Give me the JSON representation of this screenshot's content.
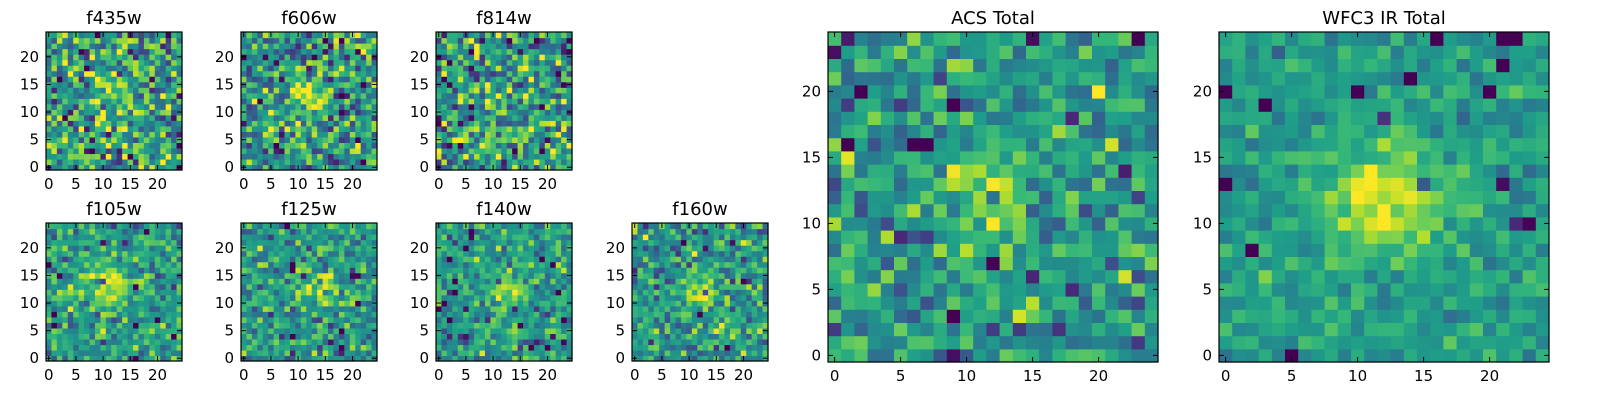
{
  "chart_data": [
    {
      "type": "heatmap",
      "title": "f435w",
      "colormap": "viridis",
      "xlim": [
        0,
        24
      ],
      "ylim": [
        0,
        24
      ],
      "xticks": [
        0,
        5,
        10,
        15,
        20
      ],
      "yticks": [
        0,
        5,
        10,
        15,
        20
      ],
      "peak": [
        12,
        12
      ],
      "peak_amp": 0.1,
      "peak_sigma": 4,
      "noise": 0.23,
      "seed": 11
    },
    {
      "type": "heatmap",
      "title": "f606w",
      "colormap": "viridis",
      "xlim": [
        0,
        24
      ],
      "ylim": [
        0,
        24
      ],
      "xticks": [
        0,
        5,
        10,
        15,
        20
      ],
      "yticks": [
        0,
        5,
        10,
        15,
        20
      ],
      "peak": [
        12,
        13
      ],
      "peak_amp": 0.2,
      "peak_sigma": 2.5,
      "noise": 0.22,
      "seed": 23
    },
    {
      "type": "heatmap",
      "title": "f814w",
      "colormap": "viridis",
      "xlim": [
        0,
        24
      ],
      "ylim": [
        0,
        24
      ],
      "xticks": [
        0,
        5,
        10,
        15,
        20
      ],
      "yticks": [
        0,
        5,
        10,
        15,
        20
      ],
      "peak": [
        12,
        12
      ],
      "peak_amp": 0.12,
      "peak_sigma": 3,
      "noise": 0.24,
      "seed": 37
    },
    {
      "type": "heatmap",
      "title": "f105w",
      "colormap": "viridis",
      "xlim": [
        0,
        24
      ],
      "ylim": [
        0,
        24
      ],
      "xticks": [
        0,
        5,
        10,
        15,
        20
      ],
      "yticks": [
        0,
        5,
        10,
        15,
        20
      ],
      "peak": [
        11,
        13
      ],
      "peak_amp": 0.35,
      "peak_sigma": 3,
      "noise": 0.14,
      "seed": 41
    },
    {
      "type": "heatmap",
      "title": "f125w",
      "colormap": "viridis",
      "xlim": [
        0,
        24
      ],
      "ylim": [
        0,
        24
      ],
      "xticks": [
        0,
        5,
        10,
        15,
        20
      ],
      "yticks": [
        0,
        5,
        10,
        15,
        20
      ],
      "peak": [
        14,
        13
      ],
      "peak_amp": 0.22,
      "peak_sigma": 2.5,
      "noise": 0.16,
      "seed": 53
    },
    {
      "type": "heatmap",
      "title": "f140w",
      "colormap": "viridis",
      "xlim": [
        0,
        24
      ],
      "ylim": [
        0,
        24
      ],
      "xticks": [
        0,
        5,
        10,
        15,
        20
      ],
      "yticks": [
        0,
        5,
        10,
        15,
        20
      ],
      "peak": [
        13,
        12
      ],
      "peak_amp": 0.3,
      "peak_sigma": 2.5,
      "noise": 0.14,
      "seed": 67
    },
    {
      "type": "heatmap",
      "title": "f160w",
      "colormap": "viridis",
      "xlim": [
        0,
        24
      ],
      "ylim": [
        0,
        24
      ],
      "xticks": [
        0,
        5,
        10,
        15,
        20
      ],
      "yticks": [
        0,
        5,
        10,
        15,
        20
      ],
      "peak": [
        12,
        12
      ],
      "peak_amp": 0.35,
      "peak_sigma": 2,
      "noise": 0.17,
      "seed": 79
    },
    {
      "type": "heatmap",
      "title": "ACS Total",
      "colormap": "viridis",
      "xlim": [
        0,
        24
      ],
      "ylim": [
        0,
        24
      ],
      "xticks": [
        0,
        5,
        10,
        15,
        20
      ],
      "yticks": [
        0,
        5,
        10,
        15,
        20
      ],
      "peak": [
        12,
        12
      ],
      "peak_amp": 0.28,
      "peak_sigma": 2.2,
      "noise": 0.16,
      "seed": 83
    },
    {
      "type": "heatmap",
      "title": "WFC3 IR Total",
      "colormap": "viridis",
      "xlim": [
        0,
        24
      ],
      "ylim": [
        0,
        24
      ],
      "xticks": [
        0,
        5,
        10,
        15,
        20
      ],
      "yticks": [
        0,
        5,
        10,
        15,
        20
      ],
      "peak": [
        12,
        12
      ],
      "peak_amp": 0.4,
      "peak_sigma": 3,
      "noise": 0.09,
      "seed": 97
    }
  ]
}
